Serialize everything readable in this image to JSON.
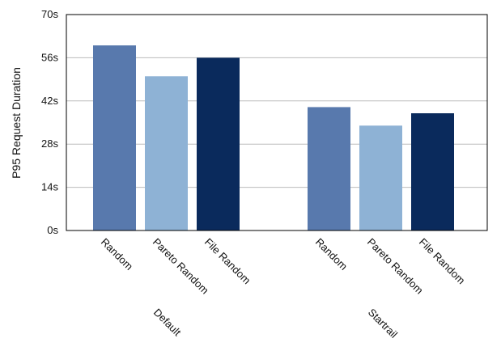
{
  "chart_data": {
    "type": "bar",
    "ylabel": "P95 Request Duration",
    "ylim": [
      0,
      70
    ],
    "yticks": [
      "0s",
      "14s",
      "28s",
      "42s",
      "56s",
      "70s"
    ],
    "ytick_values": [
      0,
      14,
      28,
      42,
      56,
      70
    ],
    "grid": true,
    "groups": [
      {
        "name": "Default",
        "categories": [
          "Random",
          "Pareto Random",
          "File Random"
        ],
        "values": [
          60,
          50,
          56
        ]
      },
      {
        "name": "Startrail",
        "categories": [
          "Random",
          "Pareto Random",
          "File Random"
        ],
        "values": [
          40,
          34,
          38
        ]
      }
    ],
    "colors": [
      "#5879ad",
      "#8eb2d5",
      "#0a2a5c"
    ]
  }
}
